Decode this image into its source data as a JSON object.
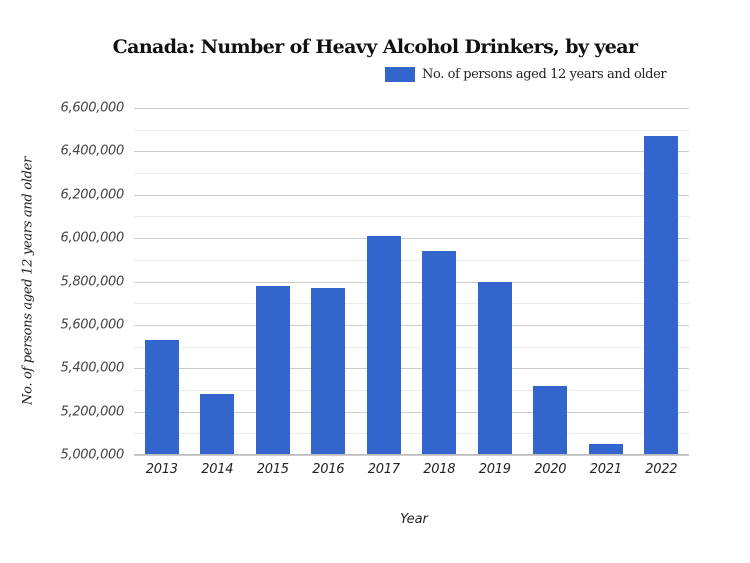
{
  "chart_data": {
    "type": "bar",
    "title": "Canada: Number of Heavy Alcohol Drinkers, by year",
    "xlabel": "Year",
    "ylabel": "No. of persons aged 12 years and older",
    "categories": [
      "2013",
      "2014",
      "2015",
      "2016",
      "2017",
      "2018",
      "2019",
      "2020",
      "2021",
      "2022"
    ],
    "series": [
      {
        "name": "No. of persons aged 12 years and older",
        "color": "#3366cc",
        "values": [
          5530000,
          5280000,
          5780000,
          5770000,
          6010000,
          5940000,
          5800000,
          5320000,
          5050000,
          6470000
        ]
      }
    ],
    "ylim": [
      5000000,
      6600000
    ],
    "yticks": [
      5000000,
      5200000,
      5400000,
      5600000,
      5800000,
      6000000,
      6200000,
      6400000,
      6600000
    ],
    "ytick_labels": [
      "5,000,000",
      "5,200,000",
      "5,400,000",
      "5,600,000",
      "5,800,000",
      "6,000,000",
      "6,200,000",
      "6,400,000",
      "6,600,000"
    ],
    "grid": true,
    "minor_grid": true,
    "legend_position": "top-right"
  },
  "title": "Canada: Number of Heavy Alcohol Drinkers, by year",
  "legend": {
    "label": "No. of persons aged 12 years and older",
    "color": "#3366cc"
  },
  "axes": {
    "xlabel": "Year",
    "ylabel": "No. of persons aged 12 years and older"
  }
}
